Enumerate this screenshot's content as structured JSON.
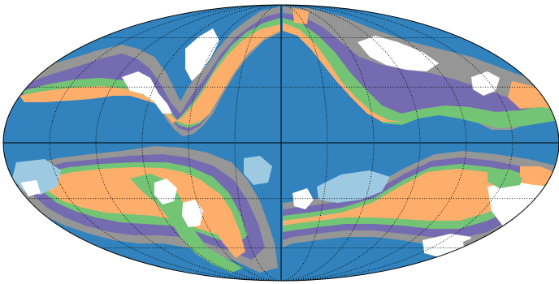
{
  "map": {
    "projection": "mollweide",
    "colors": {
      "ocean": "#3182bd",
      "light_blue": "#9ecae1",
      "orange": "#fdae6b",
      "green": "#74c476",
      "purple": "#756bb1",
      "gray": "#969696",
      "land_white": "#ffffff",
      "graticule": "#000000",
      "outline": "#000000"
    },
    "graticule": {
      "meridians_deg": [
        -150,
        -120,
        -90,
        -60,
        -30,
        30,
        60,
        90,
        120,
        150
      ],
      "parallels_deg": [
        -60,
        -30,
        30,
        60
      ],
      "style": "dotted",
      "solid_lines": [
        "equator",
        "central-meridian"
      ]
    }
  }
}
